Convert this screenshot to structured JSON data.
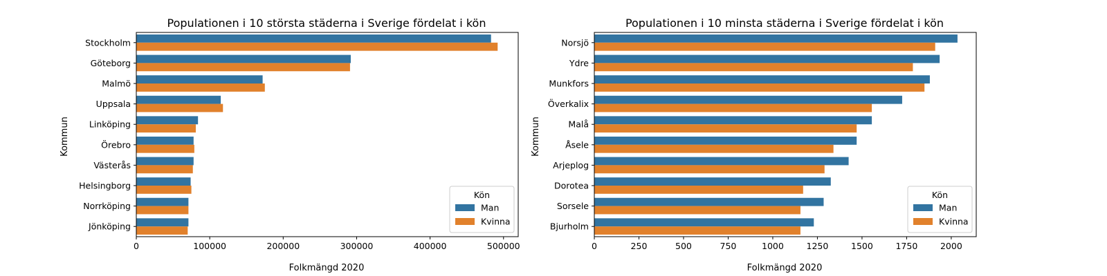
{
  "colors": {
    "Man": "#3274a1",
    "Kvinna": "#e1812c"
  },
  "chart_data": [
    {
      "type": "bar",
      "orientation": "horizontal",
      "title": "Populationen i 10 största städerna i Sverige fördelat i kön",
      "xlabel": "Folkmängd 2020",
      "ylabel": "Kommun",
      "xlim": [
        0,
        520000
      ],
      "xticks": [
        0,
        100000,
        200000,
        300000,
        400000,
        500000
      ],
      "xtick_labels": [
        "0",
        "100000",
        "200000",
        "300000",
        "400000",
        "500000"
      ],
      "categories": [
        "Stockholm",
        "Göteborg",
        "Malmö",
        "Uppsala",
        "Linköping",
        "Örebro",
        "Västerås",
        "Helsingborg",
        "Norrköping",
        "Jönköping"
      ],
      "series": [
        {
          "name": "Man",
          "values": [
            483000,
            292000,
            172000,
            115000,
            84000,
            78000,
            78000,
            74000,
            71000,
            71000
          ]
        },
        {
          "name": "Kvinna",
          "values": [
            492000,
            291000,
            175000,
            118000,
            81000,
            79000,
            77000,
            75000,
            71000,
            70000
          ]
        }
      ],
      "legend": {
        "title": "Kön",
        "position": "lower right",
        "labels": [
          "Man",
          "Kvinna"
        ]
      },
      "grid": false
    },
    {
      "type": "bar",
      "orientation": "horizontal",
      "title": "Populationen i 10 minsta städerna i Sverige fördelat i kön",
      "xlabel": "Folkmängd 2020",
      "ylabel": "Kommun",
      "xlim": [
        0,
        2140
      ],
      "xticks": [
        0,
        250,
        500,
        750,
        1000,
        1250,
        1500,
        1750,
        2000
      ],
      "xtick_labels": [
        "0",
        "250",
        "500",
        "750",
        "1000",
        "1250",
        "1500",
        "1750",
        "2000"
      ],
      "categories": [
        "Norsjö",
        "Ydre",
        "Munkfors",
        "Överkalix",
        "Malå",
        "Åsele",
        "Arjeplog",
        "Dorotea",
        "Sorsele",
        "Bjurholm"
      ],
      "series": [
        {
          "name": "Man",
          "values": [
            2035,
            1935,
            1880,
            1725,
            1555,
            1470,
            1425,
            1325,
            1285,
            1230
          ]
        },
        {
          "name": "Kvinna",
          "values": [
            1910,
            1785,
            1850,
            1555,
            1470,
            1340,
            1290,
            1170,
            1155,
            1155
          ]
        }
      ],
      "legend": {
        "title": "Kön",
        "position": "lower right",
        "labels": [
          "Man",
          "Kvinna"
        ]
      },
      "grid": false
    }
  ]
}
